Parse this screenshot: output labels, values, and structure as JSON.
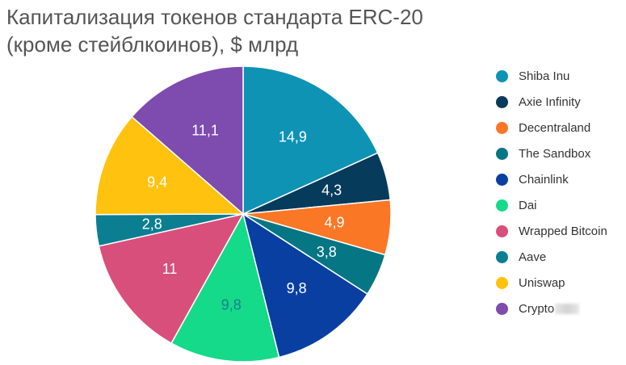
{
  "chart_data": {
    "type": "pie",
    "title": [
      "Капитализация токенов стандарта ERC-20",
      "(кроме стейблкоинов), $ млрд"
    ],
    "legend_placement": "right",
    "slices": [
      {
        "name": "Shiba Inu",
        "value": 14.9,
        "label": "14,9",
        "color": "#0E93B5"
      },
      {
        "name": "Axie Infinity",
        "value": 4.3,
        "label": "4,3",
        "color": "#073B5C"
      },
      {
        "name": "Decentraland",
        "value": 4.9,
        "label": "4,9",
        "color": "#F97725"
      },
      {
        "name": "The Sandbox",
        "value": 3.8,
        "label": "3,8",
        "color": "#057683"
      },
      {
        "name": "Chainlink",
        "value": 9.8,
        "label": "9,8",
        "color": "#0A3FA2"
      },
      {
        "name": "Dai",
        "value": 9.8,
        "label": "9,8",
        "color": "#15DA8A"
      },
      {
        "name": "Wrapped Bitcoin",
        "value": 11,
        "label": "11",
        "color": "#D94F7C"
      },
      {
        "name": "Aave",
        "value": 2.8,
        "label": "2,8",
        "color": "#0C7E92"
      },
      {
        "name": "Uniswap",
        "value": 9.4,
        "label": "9,4",
        "color": "#FFC20E"
      },
      {
        "name": "Crypto",
        "value": 11.1,
        "label": "11,1",
        "color": "#7E4BAE"
      }
    ]
  }
}
